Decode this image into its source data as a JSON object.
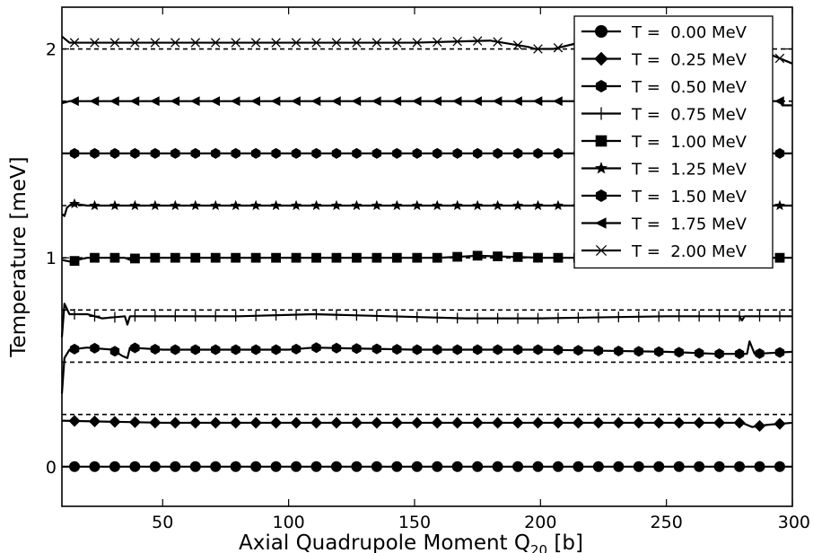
{
  "chart_data": {
    "type": "line",
    "xlabel": "Axial Quadrupole Moment Q",
    "xlabel_sub": "20",
    "xlabel_unit": "[b]",
    "ylabel": "Temperature [meV]",
    "xlim": [
      10,
      300
    ],
    "ylim": [
      -0.19,
      2.2
    ],
    "xticks": [
      50,
      100,
      150,
      200,
      250,
      300
    ],
    "yticks": [
      0,
      1,
      2
    ],
    "xtick_labels": [
      "50",
      "100",
      "150",
      "200",
      "250",
      "300"
    ],
    "ytick_labels": [
      "0",
      "1",
      "2"
    ],
    "grid": false,
    "legend_position": "top-right",
    "reference_lines": [
      0.0,
      0.25,
      0.5,
      0.75,
      1.0,
      1.25,
      1.5,
      1.75,
      2.0
    ],
    "series": [
      {
        "name": "T =  0.00 MeV",
        "marker": "circle",
        "reference": 0.0,
        "points": [
          [
            10,
            0.0
          ],
          [
            100,
            0.0
          ],
          [
            200,
            0.0
          ],
          [
            300,
            0.0
          ]
        ]
      },
      {
        "name": "T =  0.25 MeV",
        "marker": "diamond",
        "reference": 0.25,
        "points": [
          [
            10,
            0.22
          ],
          [
            50,
            0.21
          ],
          [
            100,
            0.21
          ],
          [
            150,
            0.21
          ],
          [
            200,
            0.21
          ],
          [
            250,
            0.21
          ],
          [
            280,
            0.21
          ],
          [
            284,
            0.19
          ],
          [
            290,
            0.2
          ],
          [
            300,
            0.21
          ]
        ]
      },
      {
        "name": "T =  0.50 MeV",
        "marker": "hexagon",
        "reference": 0.5,
        "points": [
          [
            10,
            0.35
          ],
          [
            11,
            0.52
          ],
          [
            13,
            0.56
          ],
          [
            20,
            0.57
          ],
          [
            30,
            0.56
          ],
          [
            34,
            0.53
          ],
          [
            36,
            0.52
          ],
          [
            37,
            0.57
          ],
          [
            50,
            0.56
          ],
          [
            80,
            0.56
          ],
          [
            100,
            0.56
          ],
          [
            110,
            0.57
          ],
          [
            150,
            0.56
          ],
          [
            200,
            0.56
          ],
          [
            250,
            0.55
          ],
          [
            270,
            0.54
          ],
          [
            282,
            0.54
          ],
          [
            283,
            0.6
          ],
          [
            285,
            0.54
          ],
          [
            300,
            0.55
          ]
        ]
      },
      {
        "name": "T =  0.75 MeV",
        "marker": "plus",
        "reference": 0.75,
        "points": [
          [
            10,
            0.62
          ],
          [
            11,
            0.78
          ],
          [
            13,
            0.73
          ],
          [
            20,
            0.73
          ],
          [
            26,
            0.71
          ],
          [
            35,
            0.72
          ],
          [
            36,
            0.68
          ],
          [
            37,
            0.72
          ],
          [
            50,
            0.72
          ],
          [
            80,
            0.72
          ],
          [
            110,
            0.73
          ],
          [
            140,
            0.72
          ],
          [
            170,
            0.71
          ],
          [
            200,
            0.71
          ],
          [
            250,
            0.72
          ],
          [
            279,
            0.72
          ],
          [
            280,
            0.7
          ],
          [
            281,
            0.72
          ],
          [
            300,
            0.72
          ]
        ]
      },
      {
        "name": "T =  1.00 MeV",
        "marker": "square",
        "reference": 1.0,
        "points": [
          [
            10,
            0.99
          ],
          [
            14,
            0.98
          ],
          [
            16,
            0.99
          ],
          [
            20,
            1.0
          ],
          [
            35,
            1.0
          ],
          [
            37,
            0.99
          ],
          [
            40,
            1.0
          ],
          [
            100,
            1.0
          ],
          [
            160,
            1.0
          ],
          [
            175,
            1.01
          ],
          [
            200,
            1.0
          ],
          [
            250,
            1.0
          ],
          [
            300,
            1.0
          ]
        ]
      },
      {
        "name": "T =  1.25 MeV",
        "marker": "star",
        "reference": 1.25,
        "points": [
          [
            10,
            1.21
          ],
          [
            11,
            1.2
          ],
          [
            12,
            1.24
          ],
          [
            14,
            1.26
          ],
          [
            20,
            1.25
          ],
          [
            100,
            1.25
          ],
          [
            200,
            1.25
          ],
          [
            250,
            1.25
          ],
          [
            300,
            1.25
          ]
        ]
      },
      {
        "name": "T =  1.50 MeV",
        "marker": "hexagon",
        "reference": 1.5,
        "points": [
          [
            10,
            1.5
          ],
          [
            100,
            1.5
          ],
          [
            200,
            1.5
          ],
          [
            250,
            1.5
          ],
          [
            300,
            1.5
          ]
        ]
      },
      {
        "name": "T =  1.75 MeV",
        "marker": "triangle-left",
        "reference": 1.75,
        "points": [
          [
            10,
            1.74
          ],
          [
            13,
            1.75
          ],
          [
            100,
            1.75
          ],
          [
            200,
            1.75
          ],
          [
            250,
            1.75
          ],
          [
            295,
            1.75
          ],
          [
            296,
            1.73
          ],
          [
            300,
            1.73
          ]
        ]
      },
      {
        "name": "T =  2.00 MeV",
        "marker": "x",
        "reference": 2.0,
        "points": [
          [
            10,
            2.06
          ],
          [
            13,
            2.03
          ],
          [
            50,
            2.03
          ],
          [
            100,
            2.03
          ],
          [
            150,
            2.03
          ],
          [
            180,
            2.04
          ],
          [
            195,
            2.01
          ],
          [
            198,
            2.0
          ],
          [
            205,
            2.0
          ],
          [
            212,
            2.02
          ],
          [
            225,
            2.06
          ],
          [
            240,
            2.07
          ],
          [
            255,
            2.08
          ],
          [
            272,
            2.07
          ],
          [
            280,
            2.04
          ],
          [
            290,
            1.98
          ],
          [
            300,
            1.93
          ]
        ]
      }
    ]
  }
}
